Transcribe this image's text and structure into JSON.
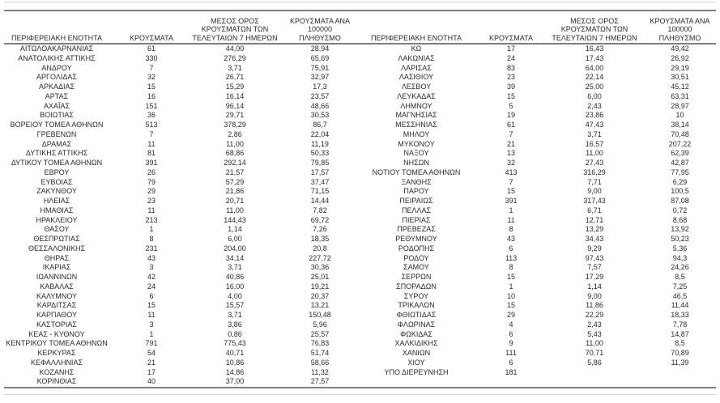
{
  "table": {
    "column_headers": {
      "region": "ΠΕΡΙΦΕΡΕΙΑΚΗ ΕΝΟΤΗΤΑ",
      "cases": "ΚΡΟΥΣΜΑΤΑ",
      "avg_7day": "ΜΕΣΟΣ ΟΡΟΣ\nΚΡΟΥΣΜΑΤΩΝ ΤΩΝ\nΤΕΛΕΥΤΑΙΩΝ 7 ΗΜΕΡΩΝ",
      "per_100k": "ΚΡΟΥΣΜΑΤΑ ΑΝΑ 100000\nΠΛΗΘΥΣΜΟ"
    },
    "left_rows": [
      [
        "ΑΙΤΩΛΟΑΚΑΡΝΑΝΙΑΣ",
        "61",
        "44,00",
        "28,94"
      ],
      [
        "ΑΝΑΤΟΛΙΚΗΣ ΑΤΤΙΚΗΣ",
        "330",
        "276,29",
        "65,69"
      ],
      [
        "ΑΝΔΡΟΥ",
        "7",
        "3,71",
        "75,91"
      ],
      [
        "ΑΡΓΟΛΙΔΑΣ",
        "32",
        "26,71",
        "32,97"
      ],
      [
        "ΑΡΚΑΔΙΑΣ",
        "15",
        "15,29",
        "17,3"
      ],
      [
        "ΑΡΤΑΣ",
        "16",
        "16,14",
        "23,57"
      ],
      [
        "ΑΧΑΪΑΣ",
        "151",
        "96,14",
        "48,66"
      ],
      [
        "ΒΟΙΩΤΙΑΣ",
        "36",
        "29,71",
        "30,53"
      ],
      [
        "ΒΟΡΕΙΟΥ ΤΟΜΕΑ ΑΘΗΝΩΝ",
        "513",
        "378,29",
        "86,7"
      ],
      [
        "ΓΡΕΒΕΝΩΝ",
        "7",
        "2,86",
        "22,04"
      ],
      [
        "ΔΡΑΜΑΣ",
        "11",
        "11,00",
        "11,19"
      ],
      [
        "ΔΥΤΙΚΗΣ ΑΤΤΙΚΗΣ",
        "81",
        "68,86",
        "50,33"
      ],
      [
        "ΔΥΤΙΚΟΥ ΤΟΜΕΑ ΑΘΗΝΩΝ",
        "391",
        "292,14",
        "79,85"
      ],
      [
        "ΕΒΡΟΥ",
        "26",
        "21,57",
        "17,57"
      ],
      [
        "ΕΥΒΟΙΑΣ",
        "79",
        "57,29",
        "37,47"
      ],
      [
        "ΖΑΚΥΝΘΟΥ",
        "29",
        "21,86",
        "71,15"
      ],
      [
        "ΗΛΕΙΑΣ",
        "23",
        "20,71",
        "14,44"
      ],
      [
        "ΗΜΑΘΙΑΣ",
        "11",
        "11,00",
        "7,82"
      ],
      [
        "ΗΡΑΚΛΕΙΟΥ",
        "213",
        "144,43",
        "69,72"
      ],
      [
        "ΘΑΣΟΥ",
        "1",
        "1,14",
        "7,26"
      ],
      [
        "ΘΕΣΠΡΩΤΙΑΣ",
        "8",
        "6,00",
        "18,35"
      ],
      [
        "ΘΕΣΣΑΛΟΝΙΚΗΣ",
        "231",
        "204,00",
        "20,8"
      ],
      [
        "ΘΗΡΑΣ",
        "43",
        "34,14",
        "227,72"
      ],
      [
        "ΙΚΑΡΙΑΣ",
        "3",
        "3,71",
        "30,36"
      ],
      [
        "ΙΩΑΝΝΙΝΩΝ",
        "42",
        "40,86",
        "25,01"
      ],
      [
        "ΚΑΒΑΛΑΣ",
        "24",
        "16,00",
        "19,21"
      ],
      [
        "ΚΑΛΥΜΝΟΥ",
        "6",
        "4,00",
        "20,37"
      ],
      [
        "ΚΑΡΔΙΤΣΑΣ",
        "15",
        "15,57",
        "13,21"
      ],
      [
        "ΚΑΡΠΑΘΟΥ",
        "11",
        "3,71",
        "150,48"
      ],
      [
        "ΚΑΣΤΟΡΙΑΣ",
        "3",
        "3,86",
        "5,96"
      ],
      [
        "ΚΕΑΣ - ΚΥΘΝΟΥ",
        "1",
        "0,86",
        "25,57"
      ],
      [
        "ΚΕΝΤΡΙΚΟΥ ΤΟΜΕΑ ΑΘΗΝΩΝ",
        "791",
        "775,43",
        "76,83"
      ],
      [
        "ΚΕΡΚΥΡΑΣ",
        "54",
        "40,71",
        "51,74"
      ],
      [
        "ΚΕΦΑΛΛΗΝΙΑΣ",
        "21",
        "10,86",
        "58,66"
      ],
      [
        "ΚΟΖΑΝΗΣ",
        "17",
        "14,86",
        "11,32"
      ],
      [
        "ΚΟΡΙΝΘΙΑΣ",
        "40",
        "37,00",
        "27,57"
      ]
    ],
    "right_rows": [
      [
        "ΚΩ",
        "17",
        "16,43",
        "49,42"
      ],
      [
        "ΛΑΚΩΝΙΑΣ",
        "24",
        "17,43",
        "26,92"
      ],
      [
        "ΛΑΡΙΣΑΣ",
        "83",
        "64,00",
        "29,19"
      ],
      [
        "ΛΑΣΙΘΙΟΥ",
        "23",
        "22,14",
        "30,51"
      ],
      [
        "ΛΕΣΒΟΥ",
        "39",
        "25,00",
        "45,12"
      ],
      [
        "ΛΕΥΚΑΔΑΣ",
        "15",
        "6,00",
        "63,31"
      ],
      [
        "ΛΗΜΝΟΥ",
        "5",
        "2,43",
        "28,97"
      ],
      [
        "ΜΑΓΝΗΣΙΑΣ",
        "19",
        "23,86",
        "10"
      ],
      [
        "ΜΕΣΣΗΝΙΑΣ",
        "61",
        "47,43",
        "38,14"
      ],
      [
        "ΜΗΛΟΥ",
        "7",
        "3,71",
        "70,48"
      ],
      [
        "ΜΥΚΟΝΟΥ",
        "21",
        "16,57",
        "207,22"
      ],
      [
        "ΝΑΞΟΥ",
        "13",
        "11,00",
        "62,39"
      ],
      [
        "ΝΗΣΩΝ",
        "32",
        "27,43",
        "42,87"
      ],
      [
        "ΝΟΤΙΟΥ ΤΟΜΕΑ ΑΘΗΝΩΝ",
        "413",
        "316,29",
        "77,95"
      ],
      [
        "ΞΑΝΘΗΣ",
        "7",
        "7,71",
        "6,29"
      ],
      [
        "ΠΑΡΟΥ",
        "15",
        "9,00",
        "100,5"
      ],
      [
        "ΠΕΙΡΑΙΩΣ",
        "391",
        "317,43",
        "87,08"
      ],
      [
        "ΠΕΛΛΑΣ",
        "1",
        "6,71",
        "0,72"
      ],
      [
        "ΠΙΕΡΙΑΣ",
        "11",
        "12,71",
        "8,68"
      ],
      [
        "ΠΡΕΒΕΖΑΣ",
        "8",
        "13,29",
        "13,92"
      ],
      [
        "ΡΕΘΥΜΝΟΥ",
        "43",
        "34,43",
        "50,23"
      ],
      [
        "ΡΟΔΟΠΗΣ",
        "6",
        "9,29",
        "5,36"
      ],
      [
        "ΡΟΔΟΥ",
        "113",
        "97,43",
        "94,3"
      ],
      [
        "ΣΑΜΟΥ",
        "8",
        "7,57",
        "24,26"
      ],
      [
        "ΣΕΡΡΩΝ",
        "15",
        "17,29",
        "8,5"
      ],
      [
        "ΣΠΟΡΑΔΩΝ",
        "1",
        "1,14",
        "7,25"
      ],
      [
        "ΣΥΡΟΥ",
        "10",
        "9,00",
        "46,5"
      ],
      [
        "ΤΡΙΚΑΛΩΝ",
        "15",
        "11,86",
        "11,44"
      ],
      [
        "ΦΘΙΩΤΙΔΑΣ",
        "29",
        "22,29",
        "18,33"
      ],
      [
        "ΦΛΩΡΙΝΑΣ",
        "4",
        "2,43",
        "7,78"
      ],
      [
        "ΦΩΚΙΔΑΣ",
        "6",
        "5,43",
        "14,87"
      ],
      [
        "ΧΑΛΚΙΔΙΚΗΣ",
        "9",
        "11,00",
        "8,5"
      ],
      [
        "ΧΑΝΙΩΝ",
        "111",
        "70,71",
        "70,89"
      ],
      [
        "ΧΙΟΥ",
        "6",
        "5,86",
        "11,39"
      ],
      [
        "ΥΠΟ ΔΙΕΡΕΥΝΗΣΗ",
        "181",
        "",
        ""
      ]
    ]
  },
  "colors": {
    "border_dark": "#7f7f7f",
    "border_light": "#d4d4d4",
    "text": "#2b2b2b"
  }
}
